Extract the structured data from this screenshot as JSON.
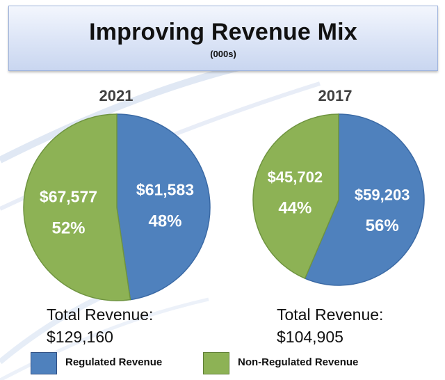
{
  "header": {
    "title": "Improving Revenue Mix",
    "subtitle": "(000s)"
  },
  "colors": {
    "regulated": "#4f81bd",
    "non_regulated": "#8db255",
    "title_bg": "#d6e0f5"
  },
  "chart_data": [
    {
      "type": "pie",
      "title": "2021",
      "slices": [
        {
          "label": "Regulated Revenue",
          "value": 61583,
          "value_label": "$61,583",
          "percent_label": "48%"
        },
        {
          "label": "Non-Regulated Revenue",
          "value": 67577,
          "value_label": "$67,577",
          "percent_label": "52%"
        }
      ],
      "total_label": "Total Revenue:",
      "total_value": "$129,160"
    },
    {
      "type": "pie",
      "title": "2017",
      "slices": [
        {
          "label": "Regulated Revenue",
          "value": 59203,
          "value_label": "$59,203",
          "percent_label": "56%"
        },
        {
          "label": "Non-Regulated Revenue",
          "value": 45702,
          "value_label": "$45,702",
          "percent_label": "44%"
        }
      ],
      "total_label": "Total Revenue:",
      "total_value": "$104,905"
    }
  ],
  "legend": [
    {
      "label": "Regulated Revenue"
    },
    {
      "label": "Non-Regulated Revenue"
    }
  ]
}
